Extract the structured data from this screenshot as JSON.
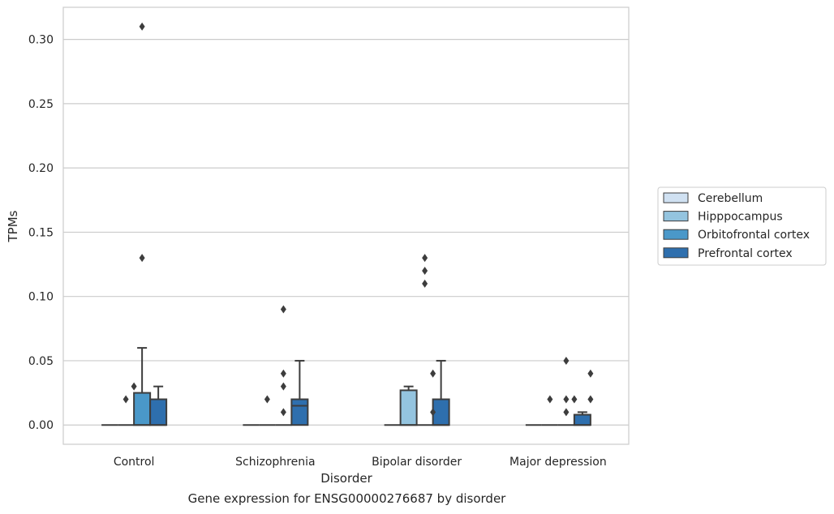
{
  "caption": "Gene expression for ENSG00000276687 by disorder",
  "chart_data": {
    "type": "box",
    "xlabel": "Disorder",
    "ylabel": "TPMs",
    "ylim": [
      -0.015,
      0.325
    ],
    "yticks": [
      0.0,
      0.05,
      0.1,
      0.15,
      0.2,
      0.25,
      0.3
    ],
    "ytick_labels": [
      "0.00",
      "0.05",
      "0.10",
      "0.15",
      "0.20",
      "0.25",
      "0.30"
    ],
    "grid": true,
    "legend_position": "right",
    "categories": [
      "Control",
      "Schizophrenia",
      "Bipolar disorder",
      "Major depression"
    ],
    "series": [
      {
        "name": "Cerebellum",
        "color": "#d0e1f2",
        "boxes": [
          {
            "q1": 0,
            "median": 0,
            "q3": 0,
            "whisker_low": 0,
            "whisker_high": 0,
            "outliers": []
          },
          {
            "q1": 0,
            "median": 0,
            "q3": 0,
            "whisker_low": 0,
            "whisker_high": 0,
            "outliers": []
          },
          {
            "q1": 0,
            "median": 0,
            "q3": 0,
            "whisker_low": 0,
            "whisker_high": 0,
            "outliers": []
          },
          {
            "q1": 0,
            "median": 0,
            "q3": 0,
            "whisker_low": 0,
            "whisker_high": 0,
            "outliers": []
          }
        ]
      },
      {
        "name": "Hipppocampus",
        "color": "#94c4df",
        "boxes": [
          {
            "q1": 0,
            "median": 0,
            "q3": 0,
            "whisker_low": 0,
            "whisker_high": 0,
            "outliers": [
              0.02
            ]
          },
          {
            "q1": 0,
            "median": 0,
            "q3": 0,
            "whisker_low": 0,
            "whisker_high": 0,
            "outliers": [
              0.02
            ]
          },
          {
            "q1": 0,
            "median": 0,
            "q3": 0.027,
            "whisker_low": 0,
            "whisker_high": 0.03,
            "outliers": []
          },
          {
            "q1": 0,
            "median": 0,
            "q3": 0,
            "whisker_low": 0,
            "whisker_high": 0,
            "outliers": [
              0.02
            ]
          }
        ]
      },
      {
        "name": "Orbitofrontal cortex",
        "color": "#4a98c9",
        "boxes": [
          {
            "q1": 0,
            "median": 0,
            "q3": 0.025,
            "whisker_low": 0,
            "whisker_high": 0.06,
            "outliers": [
              0.13,
              0.31
            ]
          },
          {
            "q1": 0,
            "median": 0,
            "q3": 0,
            "whisker_low": 0,
            "whisker_high": 0,
            "outliers": [
              0.01,
              0.03,
              0.04,
              0.09
            ]
          },
          {
            "q1": 0,
            "median": 0,
            "q3": 0,
            "whisker_low": 0,
            "whisker_high": 0,
            "outliers": [
              0.11,
              0.12,
              0.13
            ]
          },
          {
            "q1": 0,
            "median": 0,
            "q3": 0,
            "whisker_low": 0,
            "whisker_high": 0,
            "outliers": [
              0.01,
              0.02,
              0.05
            ]
          }
        ]
      },
      {
        "name": "Prefrontal cortex",
        "color": "#2e6fae",
        "boxes": [
          {
            "q1": 0,
            "median": 0,
            "q3": 0.02,
            "whisker_low": 0,
            "whisker_high": 0.03,
            "outliers": []
          },
          {
            "q1": 0,
            "median": 0.015,
            "q3": 0.02,
            "whisker_low": 0,
            "whisker_high": 0.05,
            "outliers": []
          },
          {
            "q1": 0,
            "median": 0,
            "q3": 0.02,
            "whisker_low": 0,
            "whisker_high": 0.05,
            "outliers": []
          },
          {
            "q1": 0,
            "median": 0,
            "q3": 0.008,
            "whisker_low": 0,
            "whisker_high": 0.01,
            "outliers": []
          }
        ]
      }
    ],
    "extra_points": [
      {
        "category_index": 0,
        "slot": 1.5,
        "y": 0.03
      },
      {
        "category_index": 2,
        "slot": 2.5,
        "y": 0.01
      },
      {
        "category_index": 2,
        "slot": 2.5,
        "y": 0.04
      },
      {
        "category_index": 3,
        "slot": 2.5,
        "y": 0.02
      },
      {
        "category_index": 3,
        "slot": 3.5,
        "y": 0.02
      },
      {
        "category_index": 3,
        "slot": 3.5,
        "y": 0.04
      }
    ]
  }
}
